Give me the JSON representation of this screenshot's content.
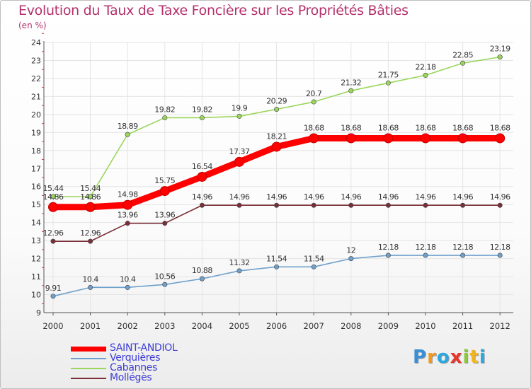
{
  "title": "Evolution du Taux de Taxe Foncière sur les Propriétés Bâties",
  "unit_label": "(en %)",
  "chart_data": {
    "type": "line",
    "title": "Evolution du Taux de Taxe Foncière sur les Propriétés Bâties",
    "ylabel": "(en %)",
    "xlabel": "",
    "ylim": [
      9,
      24
    ],
    "yticks": [
      "9",
      "10",
      "11",
      "12",
      "13",
      "14",
      "15",
      "16",
      "17",
      "18",
      "19",
      "20",
      "21",
      "22",
      "23",
      "24"
    ],
    "categories": [
      "2000",
      "2001",
      "2002",
      "2003",
      "2004",
      "2005",
      "2006",
      "2007",
      "2008",
      "2009",
      "2010",
      "2011",
      "2012"
    ],
    "series": [
      {
        "name": "SAINT-ANDIOL",
        "color": "#ff0000",
        "values": [
          14.86,
          14.86,
          14.98,
          15.75,
          16.54,
          17.37,
          18.21,
          18.68,
          18.68,
          18.68,
          18.68,
          18.68,
          18.68
        ],
        "labels": [
          "14.86",
          "14.86",
          "14.98",
          "15.75",
          "16.54",
          "17.37",
          "18.21",
          "18.68",
          "18.68",
          "18.68",
          "18.68",
          "18.68",
          "18.68"
        ]
      },
      {
        "name": "Verquières",
        "color": "#6fa0cc",
        "values": [
          9.91,
          10.4,
          10.4,
          10.56,
          10.88,
          11.32,
          11.54,
          11.54,
          12,
          12.18,
          12.18,
          12.18,
          12.18
        ],
        "labels": [
          "9.91",
          "10.4",
          "10.4",
          "10.56",
          "10.88",
          "11.32",
          "11.54",
          "11.54",
          "12",
          "12.18",
          "12.18",
          "12.18",
          "12.18"
        ]
      },
      {
        "name": "Cabannes",
        "color": "#9ad65c",
        "values": [
          15.44,
          15.44,
          18.89,
          19.82,
          19.82,
          19.9,
          20.29,
          20.7,
          21.32,
          21.75,
          22.18,
          22.85,
          23.19
        ],
        "labels": [
          "15.44",
          "15.44",
          "18.89",
          "19.82",
          "19.82",
          "19.9",
          "20.29",
          "20.7",
          "21.32",
          "21.75",
          "22.18",
          "22.85",
          "23.19"
        ]
      },
      {
        "name": "Mollégès",
        "color": "#7a2e37",
        "values": [
          12.96,
          12.96,
          13.96,
          13.96,
          14.96,
          14.96,
          14.96,
          14.96,
          14.96,
          14.96,
          14.96,
          14.96,
          14.96
        ],
        "labels": [
          "12.96",
          "12.96",
          "13.96",
          "13.96",
          "14.96",
          "14.96",
          "14.96",
          "14.96",
          "14.96",
          "14.96",
          "14.96",
          "14.96",
          "14.96"
        ]
      }
    ],
    "grid": true,
    "legend": "bottom-left"
  },
  "legend": [
    {
      "label": "SAINT-ANDIOL",
      "color": "#ff0000"
    },
    {
      "label": "Verquières",
      "color": "#6fa0cc"
    },
    {
      "label": "Cabannes",
      "color": "#9ad65c"
    },
    {
      "label": "Mollégès",
      "color": "#7a2e37"
    }
  ],
  "logo": {
    "letters": [
      "P",
      "r",
      "o",
      "x",
      "i",
      "t",
      "i"
    ],
    "colors": [
      "#3b8fd6",
      "#f29a1e",
      "#2aa8e0",
      "#e8342a",
      "#8dc63f",
      "#f2b51e",
      "#2aa8e0"
    ]
  }
}
